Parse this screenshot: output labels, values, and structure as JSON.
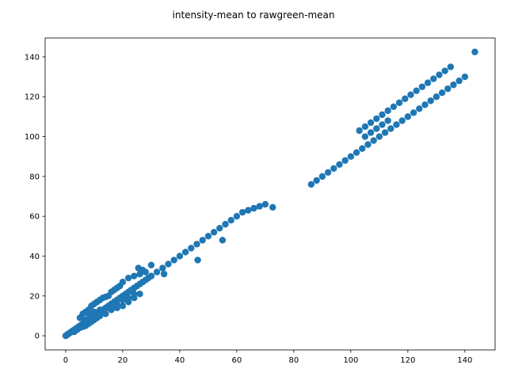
{
  "chart_data": {
    "type": "scatter",
    "title": "intensity-mean to rawgreen-mean",
    "xlabel": "",
    "ylabel": "",
    "xlim": [
      -7.2,
      150.6
    ],
    "ylim": [
      -7.1,
      149.5
    ],
    "xticks": [
      0,
      20,
      40,
      60,
      80,
      100,
      120,
      140
    ],
    "yticks": [
      0,
      20,
      40,
      60,
      80,
      100,
      120,
      140
    ],
    "grid": false,
    "marker_color": "#1f77b4",
    "series": [
      {
        "name": "",
        "x": [
          0,
          0.5,
          1,
          1.5,
          2,
          2.5,
          3,
          3.5,
          4,
          4.5,
          5,
          5.5,
          6,
          6.5,
          7,
          7.5,
          8,
          8.5,
          9,
          10,
          11,
          12,
          13,
          14,
          15,
          16,
          17,
          18,
          19,
          20,
          21,
          22,
          23,
          24,
          25,
          26,
          27,
          28,
          29,
          30,
          5,
          6,
          7,
          8,
          9,
          10,
          11,
          12,
          13,
          14,
          15,
          16,
          17,
          18,
          19,
          20,
          22,
          24,
          26,
          28,
          30,
          3,
          4,
          5,
          6,
          7,
          8,
          9,
          10,
          11,
          12,
          14,
          16,
          18,
          20,
          22,
          24,
          26,
          8,
          10,
          12,
          14,
          16,
          18,
          20,
          22,
          24,
          7,
          9,
          11,
          13,
          15,
          25.5,
          27,
          30,
          34.5,
          32,
          34,
          36,
          38,
          40,
          42,
          44,
          46,
          48,
          50,
          52,
          54,
          56,
          58,
          60,
          62,
          64,
          66,
          68,
          70,
          72.6,
          46.3,
          55,
          86.1,
          88,
          90,
          92,
          94,
          96,
          98,
          100,
          102,
          104,
          106,
          108,
          110,
          112,
          114,
          116,
          118,
          120,
          122,
          124,
          126,
          128,
          130,
          132,
          134,
          136,
          138,
          140,
          143.5,
          105,
          107,
          109,
          111,
          113,
          103,
          105,
          107,
          109,
          111,
          113,
          115,
          117,
          119,
          121,
          123,
          125,
          127,
          129,
          131,
          133,
          135
        ],
        "y": [
          0,
          0.5,
          1,
          1.5,
          2,
          2.5,
          3,
          3.5,
          4,
          4.5,
          5,
          5.5,
          6,
          6.5,
          7,
          7.5,
          8,
          8.5,
          9,
          10,
          11,
          12,
          13,
          14,
          15,
          16,
          17,
          18,
          19,
          20,
          21,
          22,
          23,
          24,
          25,
          26,
          27,
          28,
          29,
          30,
          9,
          11,
          12,
          13,
          15,
          16,
          17,
          18,
          19,
          19.5,
          20,
          22,
          23,
          24,
          25,
          27,
          29,
          30,
          31,
          32,
          35.5,
          2,
          3,
          4,
          4.5,
          5,
          6,
          7,
          8,
          9,
          10,
          11,
          13,
          14,
          15,
          17,
          19,
          21,
          11,
          12,
          13,
          14,
          15,
          16,
          18,
          19,
          21,
          8,
          9,
          11,
          13,
          14,
          34,
          33,
          30,
          31,
          32,
          34,
          36,
          38,
          40,
          42,
          44,
          46,
          48,
          50,
          52,
          54,
          56,
          58,
          60,
          62,
          63,
          64,
          65,
          66,
          64.5,
          38,
          48,
          76,
          78,
          80,
          82,
          84,
          86,
          88,
          90,
          92,
          94,
          96,
          98,
          100,
          102,
          104,
          106,
          108,
          110,
          112,
          114,
          116,
          118,
          120,
          122,
          124,
          126,
          128,
          130,
          142.5,
          100,
          102,
          104,
          106,
          108,
          103,
          105,
          107,
          109,
          111,
          113,
          115,
          117,
          119,
          121,
          123,
          125,
          127,
          129,
          131,
          133,
          135
        ]
      }
    ]
  }
}
